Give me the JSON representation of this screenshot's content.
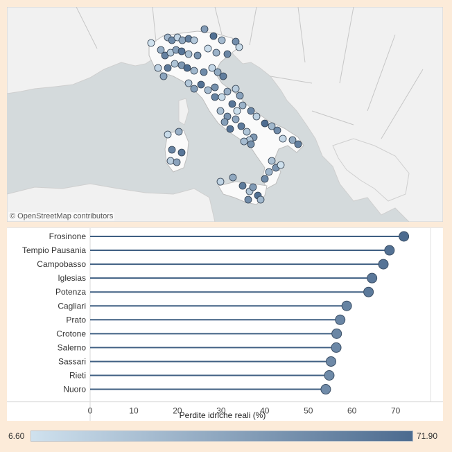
{
  "map": {
    "credit": "© OpenStreetMap contributors",
    "colors": {
      "sea": "#d4dadc",
      "land": "#f1f1f1",
      "italy": "#fafafa",
      "border": "#bfbfbf"
    }
  },
  "chart_data": {
    "type": "bar",
    "subtype": "lollipop",
    "categories": [
      "Frosinone",
      "Tempio Pausania",
      "Campobasso",
      "Iglesias",
      "Potenza",
      "Cagliari",
      "Prato",
      "Crotone",
      "Salerno",
      "Sassari",
      "Rieti",
      "Nuoro"
    ],
    "values": [
      71.9,
      68.6,
      67.2,
      64.6,
      63.8,
      58.8,
      57.3,
      56.5,
      56.4,
      55.2,
      54.8,
      54.0
    ],
    "xlabel": "Perdite idriche reali (%)",
    "ylabel": "",
    "xlim": [
      0,
      78
    ],
    "xticks": [
      0,
      10,
      20,
      30,
      40,
      50,
      60,
      70
    ],
    "xtick_labels": [
      "0",
      "10",
      "20",
      "30",
      "40",
      "50",
      "60",
      "70"
    ],
    "grid": false,
    "color_scale": {
      "min": 6.6,
      "max": 71.9,
      "min_label": "6.60",
      "max_label": "71.90",
      "low_color": "#cfe1ee",
      "high_color": "#4c6b8f"
    }
  }
}
